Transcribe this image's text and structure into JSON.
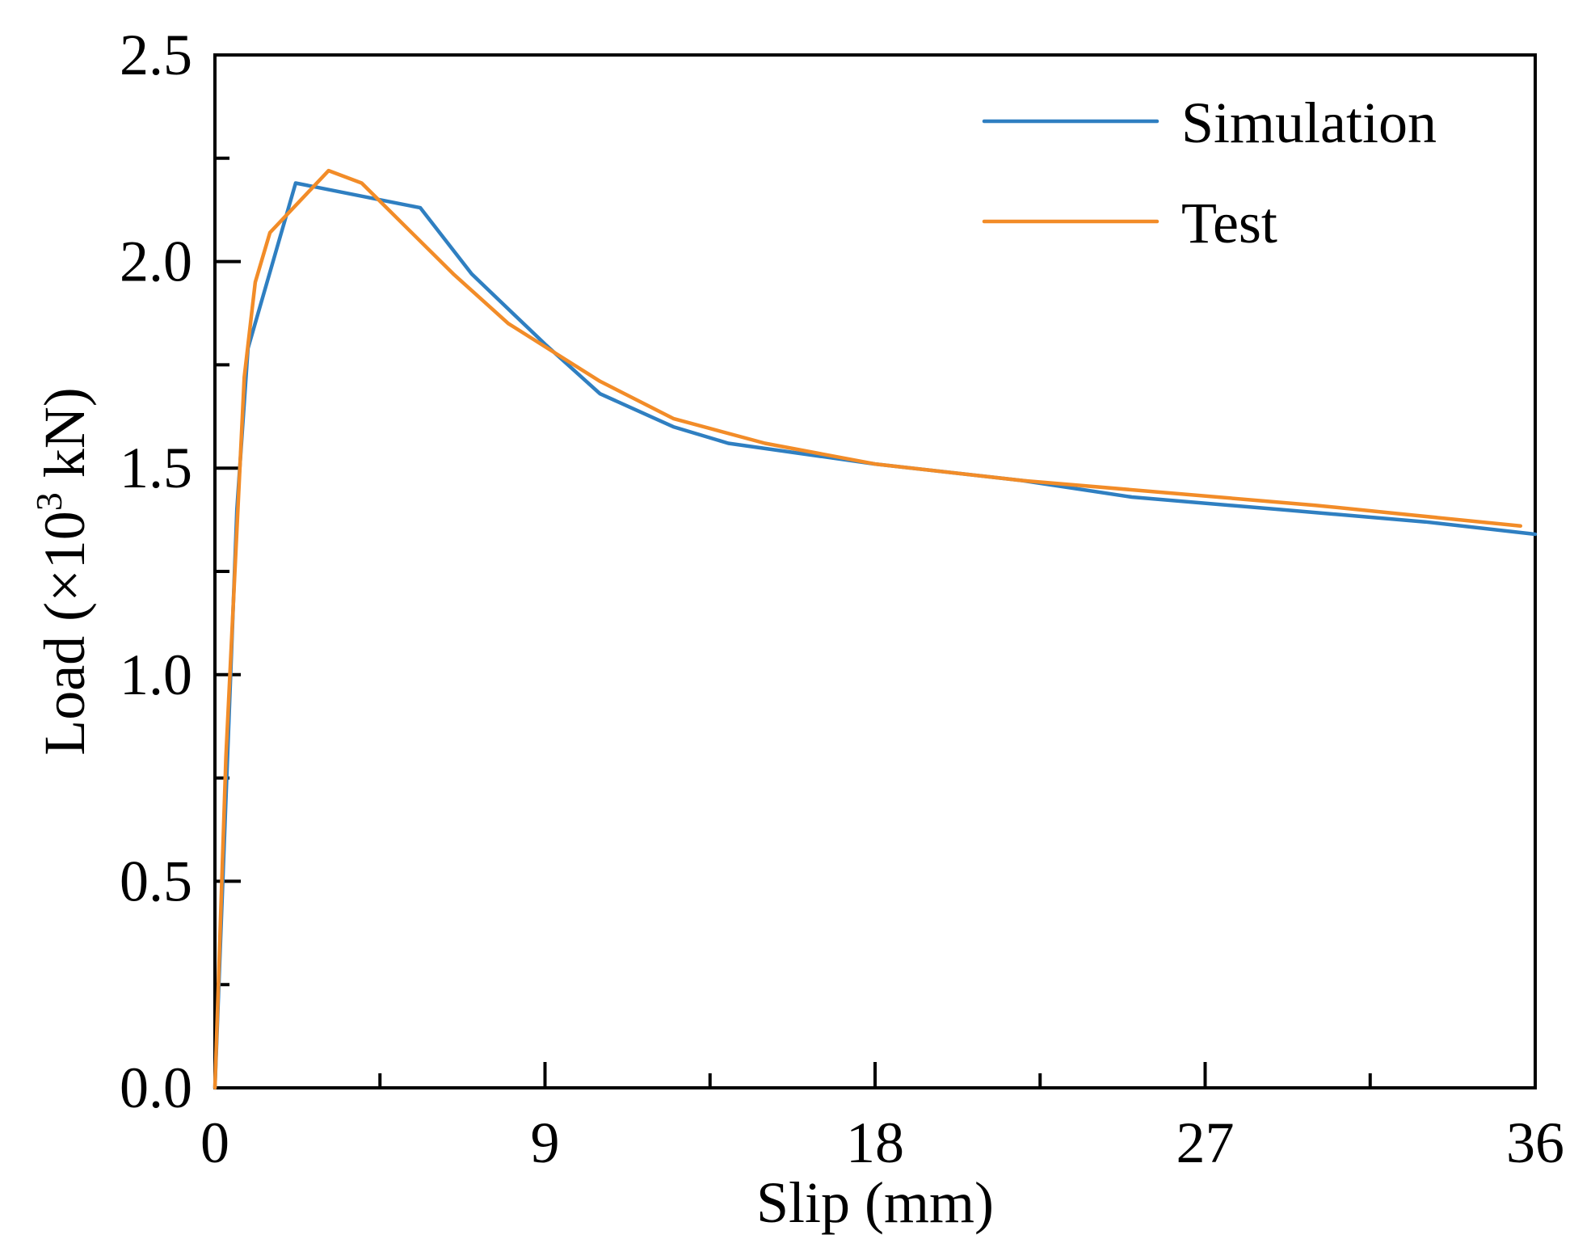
{
  "chart_data": {
    "type": "line",
    "xlabel": "Slip (mm)",
    "ylabel": {
      "main": "Load (×10",
      "superscript": "3",
      "unit": " kN)"
    },
    "xlim": [
      0,
      36
    ],
    "ylim": [
      0,
      2.5
    ],
    "x_ticks": [
      {
        "value": 0,
        "label": "0"
      },
      {
        "value": 9,
        "label": "9"
      },
      {
        "value": 18,
        "label": "18"
      },
      {
        "value": 27,
        "label": "27"
      },
      {
        "value": 36,
        "label": "36"
      }
    ],
    "x_minor_ticks": [
      4.5,
      13.5,
      22.5,
      31.5
    ],
    "y_ticks": [
      {
        "value": 0.0,
        "label": "0.0"
      },
      {
        "value": 0.5,
        "label": "0.5"
      },
      {
        "value": 1.0,
        "label": "1.0"
      },
      {
        "value": 1.5,
        "label": "1.5"
      },
      {
        "value": 2.0,
        "label": "2.0"
      },
      {
        "value": 2.5,
        "label": "2.5"
      }
    ],
    "y_minor_ticks": [
      0.25,
      0.75,
      1.25,
      1.75,
      2.25
    ],
    "grid": false,
    "legend_position": "top-right",
    "series": [
      {
        "name": "Simulation",
        "color": "#2f7fc1",
        "x": [
          0,
          0.6,
          0.9,
          2.2,
          5.6,
          7.0,
          9.0,
          10.5,
          12.5,
          14.0,
          18.0,
          22.0,
          25.0,
          29.0,
          33.0,
          36.0
        ],
        "y": [
          0,
          1.4,
          1.79,
          2.19,
          2.13,
          1.97,
          1.8,
          1.68,
          1.6,
          1.56,
          1.51,
          1.47,
          1.43,
          1.4,
          1.37,
          1.34
        ]
      },
      {
        "name": "Test",
        "color": "#f28c28",
        "x": [
          0,
          0.3,
          0.8,
          1.1,
          1.5,
          3.1,
          4.0,
          6.5,
          8.0,
          10.5,
          12.5,
          15.0,
          18.0,
          22.0,
          26.0,
          30.0,
          35.6
        ],
        "y": [
          0,
          0.8,
          1.72,
          1.95,
          2.07,
          2.22,
          2.19,
          1.97,
          1.85,
          1.71,
          1.62,
          1.56,
          1.51,
          1.47,
          1.44,
          1.41,
          1.36
        ]
      }
    ]
  }
}
